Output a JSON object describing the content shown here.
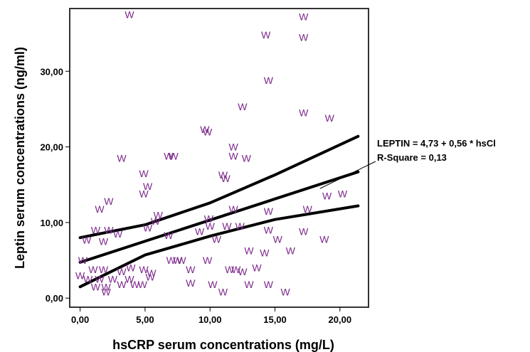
{
  "chart_data": {
    "type": "scatter",
    "title": "",
    "xlabel": "hsCRP serum concentrations (mg/L)",
    "ylabel": "Leptin serum concentrations (ng/ml)",
    "xlim": [
      -0.8,
      22.2
    ],
    "ylim": [
      -1.2,
      38.3
    ],
    "x_ticks": [
      0,
      5,
      10,
      15,
      20
    ],
    "x_tick_labels": [
      "0,00",
      "5,00",
      "10,00",
      "15,00",
      "20,00"
    ],
    "y_ticks": [
      0,
      10,
      20,
      30
    ],
    "y_tick_labels": [
      "0,00",
      "10,00",
      "20,00",
      "30,00"
    ],
    "grid": false,
    "legend": "none",
    "point_marker": "W",
    "point_color": "#7d2a8c",
    "points": [
      {
        "x": 3.8,
        "y": 37.5
      },
      {
        "x": 17.2,
        "y": 37.2
      },
      {
        "x": 14.3,
        "y": 34.8
      },
      {
        "x": 17.2,
        "y": 34.5
      },
      {
        "x": 14.5,
        "y": 28.8
      },
      {
        "x": 12.5,
        "y": 25.3
      },
      {
        "x": 17.2,
        "y": 24.5
      },
      {
        "x": 19.2,
        "y": 23.8
      },
      {
        "x": 9.6,
        "y": 22.3
      },
      {
        "x": 9.8,
        "y": 22.0
      },
      {
        "x": 11.8,
        "y": 20.0
      },
      {
        "x": 11.8,
        "y": 18.8
      },
      {
        "x": 6.8,
        "y": 18.8
      },
      {
        "x": 7.2,
        "y": 18.8
      },
      {
        "x": 12.8,
        "y": 18.5
      },
      {
        "x": 3.2,
        "y": 18.5
      },
      {
        "x": 4.9,
        "y": 16.5
      },
      {
        "x": 11.0,
        "y": 16.3
      },
      {
        "x": 5.2,
        "y": 14.8
      },
      {
        "x": 11.2,
        "y": 15.8
      },
      {
        "x": 4.9,
        "y": 13.8
      },
      {
        "x": 2.2,
        "y": 12.8
      },
      {
        "x": 1.5,
        "y": 11.8
      },
      {
        "x": 6.0,
        "y": 11.0
      },
      {
        "x": 5.8,
        "y": 10.2
      },
      {
        "x": 11.8,
        "y": 11.8
      },
      {
        "x": 14.5,
        "y": 11.5
      },
      {
        "x": 17.5,
        "y": 11.8
      },
      {
        "x": 19.0,
        "y": 13.5
      },
      {
        "x": 20.2,
        "y": 13.8
      },
      {
        "x": 9.9,
        "y": 10.5
      },
      {
        "x": 1.2,
        "y": 9.0
      },
      {
        "x": 2.2,
        "y": 9.0
      },
      {
        "x": 2.9,
        "y": 8.5
      },
      {
        "x": 5.2,
        "y": 9.3
      },
      {
        "x": 10.0,
        "y": 9.5
      },
      {
        "x": 11.3,
        "y": 9.5
      },
      {
        "x": 12.3,
        "y": 9.5
      },
      {
        "x": 14.5,
        "y": 9.0
      },
      {
        "x": 17.2,
        "y": 8.8
      },
      {
        "x": 0.5,
        "y": 7.7
      },
      {
        "x": 1.8,
        "y": 7.5
      },
      {
        "x": 6.8,
        "y": 8.3
      },
      {
        "x": 9.2,
        "y": 8.8
      },
      {
        "x": 10.5,
        "y": 7.8
      },
      {
        "x": 15.2,
        "y": 7.8
      },
      {
        "x": 18.8,
        "y": 7.8
      },
      {
        "x": 13.0,
        "y": 6.3
      },
      {
        "x": 14.2,
        "y": 6.0
      },
      {
        "x": 16.2,
        "y": 6.3
      },
      {
        "x": 0.2,
        "y": 5.0
      },
      {
        "x": 7.0,
        "y": 5.0
      },
      {
        "x": 7.5,
        "y": 5.0
      },
      {
        "x": 7.8,
        "y": 5.0
      },
      {
        "x": 9.8,
        "y": 5.0
      },
      {
        "x": 1.0,
        "y": 3.8
      },
      {
        "x": 1.8,
        "y": 3.8
      },
      {
        "x": 3.2,
        "y": 3.5
      },
      {
        "x": 3.9,
        "y": 4.0
      },
      {
        "x": 4.9,
        "y": 3.8
      },
      {
        "x": 5.5,
        "y": 3.3
      },
      {
        "x": 8.5,
        "y": 3.8
      },
      {
        "x": 11.5,
        "y": 3.8
      },
      {
        "x": 12.0,
        "y": 3.8
      },
      {
        "x": 12.5,
        "y": 3.5
      },
      {
        "x": 13.6,
        "y": 4.0
      },
      {
        "x": 0.0,
        "y": 3.0
      },
      {
        "x": 0.6,
        "y": 2.5
      },
      {
        "x": 1.5,
        "y": 2.5
      },
      {
        "x": 2.5,
        "y": 2.5
      },
      {
        "x": 3.8,
        "y": 2.5
      },
      {
        "x": 5.4,
        "y": 2.8
      },
      {
        "x": 1.2,
        "y": 1.5
      },
      {
        "x": 2.0,
        "y": 1.5
      },
      {
        "x": 3.2,
        "y": 1.8
      },
      {
        "x": 4.2,
        "y": 1.8
      },
      {
        "x": 4.8,
        "y": 1.8
      },
      {
        "x": 8.5,
        "y": 2.0
      },
      {
        "x": 10.2,
        "y": 1.8
      },
      {
        "x": 13.0,
        "y": 1.8
      },
      {
        "x": 14.5,
        "y": 1.8
      },
      {
        "x": 2.0,
        "y": 0.8
      },
      {
        "x": 11.0,
        "y": 0.8
      },
      {
        "x": 15.8,
        "y": 0.8
      }
    ],
    "fit_lines": [
      {
        "x": [
          0.0,
          5.0,
          10.0,
          15.0,
          21.4
        ],
        "y": [
          1.5,
          5.7,
          8.2,
          10.4,
          12.2
        ]
      },
      {
        "x": [
          0.0,
          21.4
        ],
        "y": [
          4.73,
          16.7
        ]
      },
      {
        "x": [
          0.0,
          5.0,
          10.0,
          15.0,
          21.4
        ],
        "y": [
          8.0,
          9.7,
          12.6,
          16.3,
          21.4
        ]
      }
    ],
    "annotation": {
      "line1": "LEPTIN = 4,73 + 0,56 * hsCl",
      "line2": "R-Square = 0,13"
    }
  }
}
